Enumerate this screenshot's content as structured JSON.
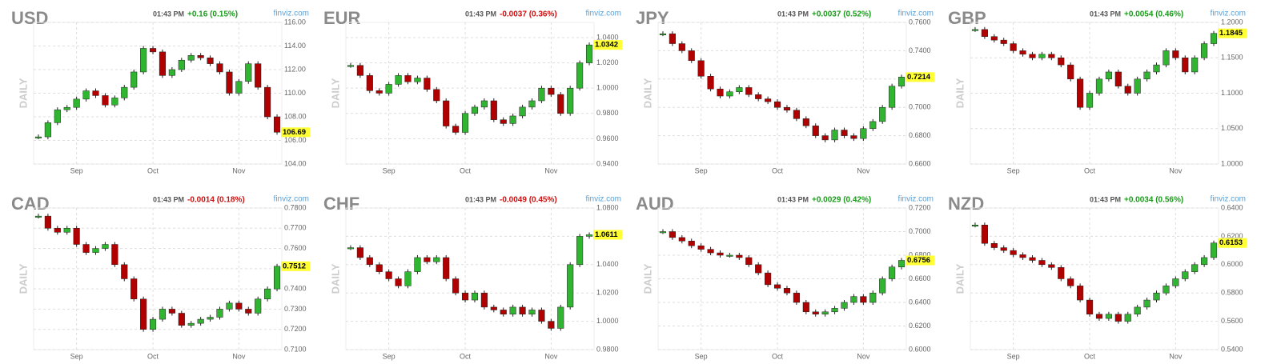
{
  "chart_data": [
    {
      "type": "candlestick",
      "title": "USD",
      "time": "01:43 PM",
      "change": "+0.16 (0.15%)",
      "change_color": "#1a9c1a",
      "source": "finviz.com",
      "period": "DAILY",
      "up_color": "#2fb52f",
      "down_color": "#b00000",
      "last": 106.69,
      "grid": true,
      "categories": [
        null,
        null,
        null,
        null,
        "Sep",
        null,
        null,
        null,
        null,
        null,
        null,
        null,
        "Oct",
        null,
        null,
        null,
        null,
        null,
        null,
        null,
        null,
        "Nov",
        null,
        null,
        null,
        null
      ],
      "values": [
        106.3,
        107.5,
        108.6,
        108.8,
        109.5,
        110.2,
        109.8,
        109,
        109.6,
        110.5,
        111.8,
        113.8,
        113.5,
        111.5,
        112,
        112.8,
        113.2,
        113,
        112.5,
        111.8,
        110,
        111,
        112.5,
        110.5,
        108,
        106.69
      ],
      "ylim": [
        104,
        116
      ],
      "yticks": [
        {
          "value": 104,
          "label": "104.00"
        },
        {
          "value": 106,
          "label": "106.00"
        },
        {
          "value": 108,
          "label": "108.00"
        },
        {
          "value": 110,
          "label": "110.00"
        },
        {
          "value": 112,
          "label": "112.00"
        },
        {
          "value": 114,
          "label": "114.00"
        },
        {
          "value": 116,
          "label": "116.00"
        }
      ]
    },
    {
      "type": "candlestick",
      "title": "EUR",
      "time": "01:43 PM",
      "change": "-0.0037 (0.36%)",
      "change_color": "#d01010",
      "source": "finviz.com",
      "period": "DAILY",
      "up_color": "#2fb52f",
      "down_color": "#b00000",
      "last": 1.0342,
      "grid": true,
      "categories": [
        null,
        null,
        null,
        null,
        "Sep",
        null,
        null,
        null,
        null,
        null,
        null,
        null,
        "Oct",
        null,
        null,
        null,
        null,
        null,
        null,
        null,
        null,
        "Nov",
        null,
        null,
        null,
        null
      ],
      "values": [
        1.018,
        1.01,
        0.998,
        0.996,
        1.003,
        1.01,
        1.005,
        1.008,
        0.999,
        0.99,
        0.97,
        0.965,
        0.98,
        0.985,
        0.99,
        0.975,
        0.972,
        0.978,
        0.985,
        0.99,
        1.0,
        0.995,
        0.98,
        1.0,
        1.02,
        1.0342
      ],
      "ylim": [
        0.94,
        1.052
      ],
      "yticks": [
        {
          "value": 0.94,
          "label": "0.9400"
        },
        {
          "value": 0.96,
          "label": "0.9600"
        },
        {
          "value": 0.98,
          "label": "0.9800"
        },
        {
          "value": 1.0,
          "label": "1.0000"
        },
        {
          "value": 1.02,
          "label": "1.0200"
        },
        {
          "value": 1.04,
          "label": "1.0400"
        }
      ]
    },
    {
      "type": "candlestick",
      "title": "JPY",
      "time": "01:43 PM",
      "change": "+0.0037 (0.52%)",
      "change_color": "#1a9c1a",
      "source": "finviz.com",
      "period": "DAILY",
      "up_color": "#2fb52f",
      "down_color": "#b00000",
      "last": 0.7214,
      "grid": true,
      "categories": [
        null,
        null,
        null,
        null,
        "Sep",
        null,
        null,
        null,
        null,
        null,
        null,
        null,
        "Oct",
        null,
        null,
        null,
        null,
        null,
        null,
        null,
        null,
        "Nov",
        null,
        null,
        null,
        null
      ],
      "values": [
        0.752,
        0.745,
        0.74,
        0.733,
        0.722,
        0.713,
        0.708,
        0.711,
        0.714,
        0.709,
        0.706,
        0.704,
        0.7,
        0.698,
        0.692,
        0.687,
        0.68,
        0.677,
        0.684,
        0.68,
        0.678,
        0.685,
        0.69,
        0.7,
        0.715,
        0.7214
      ],
      "ylim": [
        0.66,
        0.76
      ],
      "yticks": [
        {
          "value": 0.66,
          "label": "0.6600"
        },
        {
          "value": 0.68,
          "label": "0.6800"
        },
        {
          "value": 0.7,
          "label": "0.7000"
        },
        {
          "value": 0.72,
          "label": "0.7200"
        },
        {
          "value": 0.74,
          "label": "0.7400"
        },
        {
          "value": 0.76,
          "label": "0.7600"
        }
      ]
    },
    {
      "type": "candlestick",
      "title": "GBP",
      "time": "01:43 PM",
      "change": "+0.0054 (0.46%)",
      "change_color": "#1a9c1a",
      "source": "finviz.com",
      "period": "DAILY",
      "up_color": "#2fb52f",
      "down_color": "#b00000",
      "last": 1.1845,
      "grid": true,
      "categories": [
        null,
        null,
        null,
        null,
        "Sep",
        null,
        null,
        null,
        null,
        null,
        null,
        null,
        "Oct",
        null,
        null,
        null,
        null,
        null,
        null,
        null,
        null,
        "Nov",
        null,
        null,
        null,
        null
      ],
      "values": [
        1.19,
        1.18,
        1.175,
        1.17,
        1.16,
        1.155,
        1.15,
        1.155,
        1.15,
        1.14,
        1.12,
        1.08,
        1.1,
        1.12,
        1.13,
        1.11,
        1.1,
        1.12,
        1.13,
        1.14,
        1.16,
        1.15,
        1.13,
        1.15,
        1.17,
        1.1845
      ],
      "ylim": [
        1.0,
        1.2
      ],
      "yticks": [
        {
          "value": 1.0,
          "label": "1.0000"
        },
        {
          "value": 1.05,
          "label": "1.0500"
        },
        {
          "value": 1.1,
          "label": "1.1000"
        },
        {
          "value": 1.15,
          "label": "1.1500"
        },
        {
          "value": 1.2,
          "label": "1.2000"
        }
      ]
    },
    {
      "type": "candlestick",
      "title": "CAD",
      "time": "01:43 PM",
      "change": "-0.0014 (0.18%)",
      "change_color": "#d01010",
      "source": "finviz.com",
      "period": "DAILY",
      "up_color": "#2fb52f",
      "down_color": "#b00000",
      "last": 0.7512,
      "grid": true,
      "categories": [
        null,
        null,
        null,
        null,
        "Sep",
        null,
        null,
        null,
        null,
        null,
        null,
        null,
        "Oct",
        null,
        null,
        null,
        null,
        null,
        null,
        null,
        null,
        "Nov",
        null,
        null,
        null,
        null
      ],
      "values": [
        0.776,
        0.77,
        0.768,
        0.77,
        0.762,
        0.758,
        0.76,
        0.762,
        0.752,
        0.745,
        0.735,
        0.72,
        0.725,
        0.73,
        0.728,
        0.722,
        0.723,
        0.725,
        0.726,
        0.73,
        0.733,
        0.73,
        0.728,
        0.735,
        0.74,
        0.7512
      ],
      "ylim": [
        0.71,
        0.78
      ],
      "yticks": [
        {
          "value": 0.71,
          "label": "0.7100"
        },
        {
          "value": 0.72,
          "label": "0.7200"
        },
        {
          "value": 0.73,
          "label": "0.7300"
        },
        {
          "value": 0.74,
          "label": "0.7400"
        },
        {
          "value": 0.75,
          "label": "0.7500"
        },
        {
          "value": 0.76,
          "label": "0.7600"
        },
        {
          "value": 0.77,
          "label": "0.7700"
        },
        {
          "value": 0.78,
          "label": "0.7800"
        }
      ]
    },
    {
      "type": "candlestick",
      "title": "CHF",
      "time": "01:43 PM",
      "change": "-0.0049 (0.45%)",
      "change_color": "#d01010",
      "source": "finviz.com",
      "period": "DAILY",
      "up_color": "#2fb52f",
      "down_color": "#b00000",
      "last": 1.0611,
      "grid": true,
      "categories": [
        null,
        null,
        null,
        null,
        "Sep",
        null,
        null,
        null,
        null,
        null,
        null,
        null,
        "Oct",
        null,
        null,
        null,
        null,
        null,
        null,
        null,
        null,
        "Nov",
        null,
        null,
        null,
        null
      ],
      "values": [
        1.052,
        1.045,
        1.04,
        1.035,
        1.03,
        1.025,
        1.035,
        1.045,
        1.042,
        1.045,
        1.03,
        1.02,
        1.015,
        1.02,
        1.01,
        1.008,
        1.005,
        1.01,
        1.005,
        1.008,
        1.0,
        0.995,
        1.01,
        1.04,
        1.06,
        1.0611
      ],
      "ylim": [
        0.98,
        1.08
      ],
      "yticks": [
        {
          "value": 0.98,
          "label": "0.9800"
        },
        {
          "value": 1.0,
          "label": "1.0000"
        },
        {
          "value": 1.02,
          "label": "1.0200"
        },
        {
          "value": 1.04,
          "label": "1.0400"
        },
        {
          "value": 1.06,
          "label": "1.0600"
        },
        {
          "value": 1.08,
          "label": "1.0800"
        }
      ]
    },
    {
      "type": "candlestick",
      "title": "AUD",
      "time": "01:43 PM",
      "change": "+0.0029 (0.42%)",
      "change_color": "#1a9c1a",
      "source": "finviz.com",
      "period": "DAILY",
      "up_color": "#2fb52f",
      "down_color": "#b00000",
      "last": 0.6756,
      "grid": true,
      "categories": [
        null,
        null,
        null,
        null,
        "Sep",
        null,
        null,
        null,
        null,
        null,
        null,
        null,
        "Oct",
        null,
        null,
        null,
        null,
        null,
        null,
        null,
        null,
        "Nov",
        null,
        null,
        null,
        null
      ],
      "values": [
        0.7,
        0.695,
        0.692,
        0.688,
        0.685,
        0.682,
        0.68,
        0.68,
        0.678,
        0.672,
        0.665,
        0.655,
        0.652,
        0.648,
        0.64,
        0.632,
        0.63,
        0.632,
        0.635,
        0.64,
        0.645,
        0.64,
        0.648,
        0.66,
        0.67,
        0.6756
      ],
      "ylim": [
        0.6,
        0.72
      ],
      "yticks": [
        {
          "value": 0.6,
          "label": "0.6000"
        },
        {
          "value": 0.62,
          "label": "0.6200"
        },
        {
          "value": 0.64,
          "label": "0.6400"
        },
        {
          "value": 0.66,
          "label": "0.6600"
        },
        {
          "value": 0.68,
          "label": "0.6800"
        },
        {
          "value": 0.7,
          "label": "0.7000"
        },
        {
          "value": 0.72,
          "label": "0.7200"
        }
      ]
    },
    {
      "type": "candlestick",
      "title": "NZD",
      "time": "01:43 PM",
      "change": "+0.0034 (0.56%)",
      "change_color": "#1a9c1a",
      "source": "finviz.com",
      "period": "DAILY",
      "up_color": "#2fb52f",
      "down_color": "#b00000",
      "last": 0.6153,
      "grid": true,
      "categories": [
        null,
        null,
        null,
        null,
        "Sep",
        null,
        null,
        null,
        null,
        null,
        null,
        null,
        "Oct",
        null,
        null,
        null,
        null,
        null,
        null,
        null,
        null,
        "Nov",
        null,
        null,
        null,
        null
      ],
      "values": [
        0.628,
        0.615,
        0.612,
        0.61,
        0.607,
        0.605,
        0.603,
        0.6,
        0.598,
        0.59,
        0.585,
        0.575,
        0.565,
        0.562,
        0.565,
        0.56,
        0.565,
        0.57,
        0.575,
        0.58,
        0.585,
        0.59,
        0.595,
        0.6,
        0.605,
        0.6153
      ],
      "ylim": [
        0.54,
        0.64
      ],
      "yticks": [
        {
          "value": 0.54,
          "label": "0.5400"
        },
        {
          "value": 0.56,
          "label": "0.5600"
        },
        {
          "value": 0.58,
          "label": "0.5800"
        },
        {
          "value": 0.6,
          "label": "0.6000"
        },
        {
          "value": 0.62,
          "label": "0.6200"
        },
        {
          "value": 0.64,
          "label": "0.6400"
        }
      ]
    }
  ]
}
